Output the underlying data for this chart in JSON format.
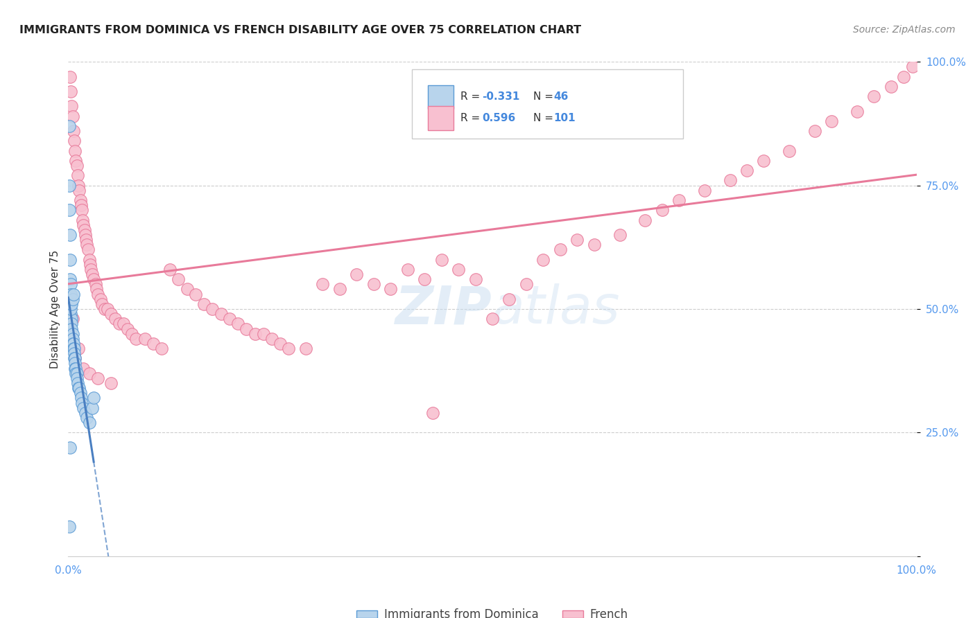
{
  "title": "IMMIGRANTS FROM DOMINICA VS FRENCH DISABILITY AGE OVER 75 CORRELATION CHART",
  "source": "Source: ZipAtlas.com",
  "ylabel": "Disability Age Over 75",
  "R1": -0.331,
  "N1": 46,
  "R2": 0.596,
  "N2": 101,
  "blue_fill": "#b8d4ec",
  "blue_edge": "#5b9bd5",
  "pink_fill": "#f8c0d0",
  "pink_edge": "#e87a9a",
  "blue_line_color": "#4a7fc1",
  "pink_line_color": "#e87a9a",
  "watermark_zip": "ZIP",
  "watermark_atlas": "atlas",
  "background_color": "#ffffff",
  "grid_color": "#cccccc",
  "tick_color": "#5599ee",
  "legend_label1": "Immigrants from Dominica",
  "legend_label2": "French",
  "blue_x": [
    0.001,
    0.001,
    0.001,
    0.002,
    0.002,
    0.002,
    0.003,
    0.003,
    0.003,
    0.003,
    0.004,
    0.004,
    0.004,
    0.005,
    0.005,
    0.005,
    0.006,
    0.006,
    0.007,
    0.007,
    0.007,
    0.008,
    0.008,
    0.008,
    0.009,
    0.009,
    0.01,
    0.01,
    0.011,
    0.012,
    0.013,
    0.014,
    0.015,
    0.016,
    0.018,
    0.02,
    0.022,
    0.025,
    0.028,
    0.03,
    0.003,
    0.004,
    0.005,
    0.006,
    0.002,
    0.001
  ],
  "blue_y": [
    0.87,
    0.75,
    0.7,
    0.65,
    0.6,
    0.56,
    0.55,
    0.53,
    0.51,
    0.49,
    0.48,
    0.47,
    0.46,
    0.45,
    0.44,
    0.43,
    0.43,
    0.42,
    0.42,
    0.41,
    0.4,
    0.4,
    0.39,
    0.38,
    0.38,
    0.37,
    0.37,
    0.36,
    0.35,
    0.34,
    0.34,
    0.33,
    0.32,
    0.31,
    0.3,
    0.29,
    0.28,
    0.27,
    0.3,
    0.32,
    0.5,
    0.51,
    0.52,
    0.53,
    0.22,
    0.06
  ],
  "pink_x": [
    0.002,
    0.003,
    0.004,
    0.005,
    0.006,
    0.007,
    0.008,
    0.009,
    0.01,
    0.011,
    0.012,
    0.013,
    0.014,
    0.015,
    0.016,
    0.017,
    0.018,
    0.019,
    0.02,
    0.021,
    0.022,
    0.023,
    0.025,
    0.026,
    0.027,
    0.028,
    0.03,
    0.032,
    0.033,
    0.035,
    0.038,
    0.04,
    0.043,
    0.046,
    0.05,
    0.055,
    0.06,
    0.065,
    0.07,
    0.075,
    0.08,
    0.09,
    0.1,
    0.11,
    0.12,
    0.13,
    0.14,
    0.15,
    0.16,
    0.17,
    0.18,
    0.19,
    0.2,
    0.21,
    0.22,
    0.23,
    0.24,
    0.25,
    0.26,
    0.28,
    0.3,
    0.32,
    0.34,
    0.36,
    0.38,
    0.4,
    0.42,
    0.44,
    0.46,
    0.48,
    0.5,
    0.52,
    0.54,
    0.56,
    0.58,
    0.6,
    0.62,
    0.65,
    0.68,
    0.7,
    0.72,
    0.75,
    0.78,
    0.8,
    0.82,
    0.85,
    0.88,
    0.9,
    0.93,
    0.95,
    0.97,
    0.985,
    0.995,
    0.005,
    0.008,
    0.012,
    0.018,
    0.025,
    0.035,
    0.05,
    0.43
  ],
  "pink_y": [
    0.97,
    0.94,
    0.91,
    0.89,
    0.86,
    0.84,
    0.82,
    0.8,
    0.79,
    0.77,
    0.75,
    0.74,
    0.72,
    0.71,
    0.7,
    0.68,
    0.67,
    0.66,
    0.65,
    0.64,
    0.63,
    0.62,
    0.6,
    0.59,
    0.58,
    0.57,
    0.56,
    0.55,
    0.54,
    0.53,
    0.52,
    0.51,
    0.5,
    0.5,
    0.49,
    0.48,
    0.47,
    0.47,
    0.46,
    0.45,
    0.44,
    0.44,
    0.43,
    0.42,
    0.58,
    0.56,
    0.54,
    0.53,
    0.51,
    0.5,
    0.49,
    0.48,
    0.47,
    0.46,
    0.45,
    0.45,
    0.44,
    0.43,
    0.42,
    0.42,
    0.55,
    0.54,
    0.57,
    0.55,
    0.54,
    0.58,
    0.56,
    0.6,
    0.58,
    0.56,
    0.48,
    0.52,
    0.55,
    0.6,
    0.62,
    0.64,
    0.63,
    0.65,
    0.68,
    0.7,
    0.72,
    0.74,
    0.76,
    0.78,
    0.8,
    0.82,
    0.86,
    0.88,
    0.9,
    0.93,
    0.95,
    0.97,
    0.99,
    0.48,
    0.4,
    0.42,
    0.38,
    0.37,
    0.36,
    0.35,
    0.29
  ]
}
